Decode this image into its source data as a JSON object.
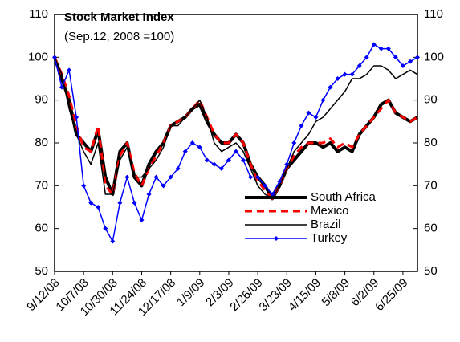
{
  "chart_data": {
    "type": "line",
    "title": "Stock Market Index",
    "subtitle": "(Sep.12, 2008 =100)",
    "categories": [
      "9/12/08",
      null,
      null,
      null,
      "10/7/08",
      null,
      null,
      null,
      "10/30/08",
      null,
      null,
      null,
      "11/24/08",
      null,
      null,
      null,
      "12/17/08",
      null,
      null,
      null,
      "1/9/09",
      null,
      null,
      null,
      "2/3/09",
      null,
      null,
      null,
      "2/26/09",
      null,
      null,
      null,
      "3/23/09",
      null,
      null,
      null,
      "4/15/09",
      null,
      null,
      null,
      "5/8/09",
      null,
      null,
      null,
      "6/2/09",
      null,
      null,
      null,
      "6/25/09",
      null,
      null
    ],
    "series": [
      {
        "name": "South Africa",
        "color": "#000000",
        "width": 4,
        "dashed": false,
        "marker": false,
        "values": [
          100,
          95,
          90,
          82,
          80,
          78,
          83,
          72,
          68,
          78,
          80,
          72,
          70,
          75,
          78,
          80,
          84,
          85,
          86,
          88,
          89,
          85,
          82,
          80,
          80,
          82,
          80,
          75,
          72,
          70,
          67,
          70,
          74,
          76,
          78,
          80,
          80,
          79,
          80,
          78,
          79,
          78,
          82,
          84,
          86,
          89,
          90,
          87,
          86,
          85,
          86
        ]
      },
      {
        "name": "Mexico",
        "color": "#ff0000",
        "width": 3,
        "dashed": true,
        "marker": false,
        "values": [
          100,
          96,
          91,
          84,
          79,
          78,
          84,
          70,
          68,
          77,
          80,
          73,
          70,
          74,
          77,
          80,
          84,
          85,
          86,
          88,
          90,
          86,
          82,
          80,
          80,
          82,
          80,
          75,
          71,
          69,
          67,
          70,
          74,
          77,
          79,
          80,
          80,
          80,
          81,
          79,
          80,
          79,
          82,
          84,
          86,
          88,
          90,
          87,
          86,
          85,
          86
        ]
      },
      {
        "name": "Brazil",
        "color": "#000000",
        "width": 1.5,
        "dashed": false,
        "marker": false,
        "values": [
          100,
          96,
          88,
          82,
          78,
          75,
          80,
          68,
          68,
          76,
          79,
          72,
          72,
          74,
          76,
          79,
          84,
          84,
          86,
          88,
          90,
          86,
          80,
          78,
          79,
          80,
          78,
          74,
          70,
          68,
          67,
          70,
          74,
          78,
          80,
          82,
          85,
          86,
          88,
          90,
          92,
          95,
          95,
          96,
          98,
          98,
          97,
          95,
          96,
          97,
          96
        ]
      },
      {
        "name": "Turkey",
        "color": "#0000ff",
        "width": 1.5,
        "dashed": false,
        "marker": true,
        "values": [
          100,
          93,
          97,
          86,
          70,
          66,
          65,
          60,
          57,
          66,
          72,
          66,
          62,
          68,
          72,
          70,
          72,
          74,
          78,
          80,
          79,
          76,
          75,
          74,
          76,
          78,
          76,
          72,
          72,
          70,
          68,
          71,
          75,
          80,
          84,
          87,
          86,
          90,
          93,
          95,
          96,
          96,
          98,
          100,
          103,
          102,
          102,
          100,
          98,
          99,
          100
        ]
      }
    ],
    "ylim": [
      50,
      110
    ],
    "yticks": [
      50,
      60,
      70,
      80,
      90,
      100,
      110
    ],
    "y2lim": [
      50,
      110
    ],
    "y2ticks": [
      50,
      60,
      70,
      80,
      90,
      100,
      110
    ],
    "grid": false,
    "legend": "lower right"
  }
}
